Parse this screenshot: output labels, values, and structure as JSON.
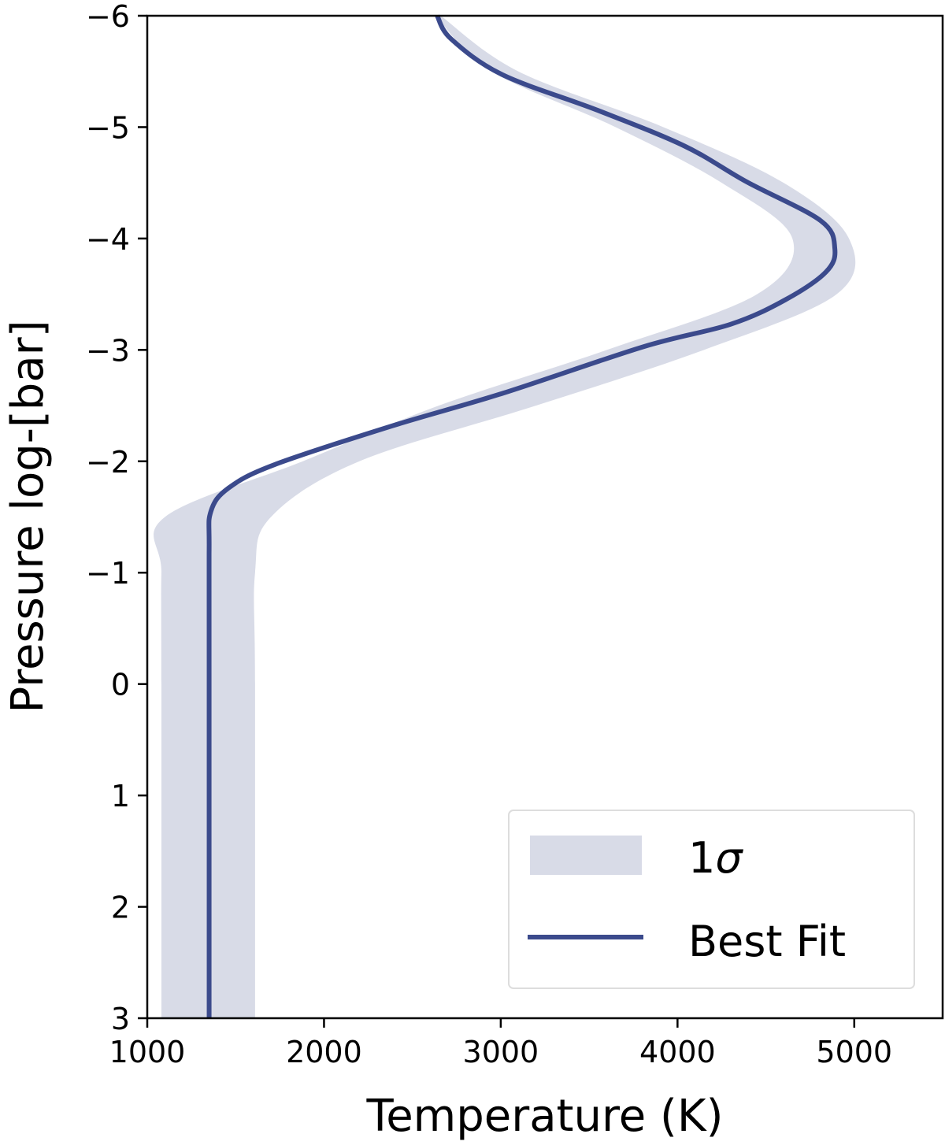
{
  "chart_data": {
    "type": "line",
    "title": "",
    "xlabel": "Temperature (K)",
    "ylabel": "Pressure log-[bar]",
    "xlim": [
      1000,
      5500
    ],
    "ylim": [
      3,
      -6
    ],
    "y_inverted": true,
    "grid": false,
    "legend_position": "lower right",
    "x_ticks": [
      1000,
      2000,
      3000,
      4000,
      5000
    ],
    "x_tick_labels": [
      "1000",
      "2000",
      "3000",
      "4000",
      "5000"
    ],
    "y_ticks": [
      -6,
      -5,
      -4,
      -3,
      -2,
      -1,
      0,
      1,
      2,
      3
    ],
    "y_tick_labels": [
      "−6",
      "−5",
      "−4",
      "−3",
      "−2",
      "−1",
      "0",
      "1",
      "2",
      "3"
    ],
    "series": [
      {
        "name": "Best Fit",
        "kind": "line",
        "color": "#3b4a8c",
        "points": [
          {
            "T": 2640,
            "logP": -6.0
          },
          {
            "T": 2720,
            "logP": -5.79
          },
          {
            "T": 3010,
            "logP": -5.47
          },
          {
            "T": 3550,
            "logP": -5.15
          },
          {
            "T": 4040,
            "logP": -4.83
          },
          {
            "T": 4390,
            "logP": -4.51
          },
          {
            "T": 4810,
            "logP": -4.16
          },
          {
            "T": 4890,
            "logP": -3.91
          },
          {
            "T": 4840,
            "logP": -3.7
          },
          {
            "T": 4610,
            "logP": -3.45
          },
          {
            "T": 4300,
            "logP": -3.23
          },
          {
            "T": 3810,
            "logP": -3.03
          },
          {
            "T": 3010,
            "logP": -2.61
          },
          {
            "T": 2390,
            "logP": -2.32
          },
          {
            "T": 1720,
            "logP": -1.97
          },
          {
            "T": 1460,
            "logP": -1.76
          },
          {
            "T": 1360,
            "logP": -1.55
          },
          {
            "T": 1350,
            "logP": -1.2
          },
          {
            "T": 1350,
            "logP": 0.0
          },
          {
            "T": 1350,
            "logP": 3.0
          }
        ]
      },
      {
        "name": "1σ",
        "kind": "band",
        "color": "#d8dbe7",
        "points": [
          {
            "logP": -6.0,
            "T_low": 2630,
            "T_high": 2660
          },
          {
            "logP": -5.5,
            "T_low": 2950,
            "T_high": 3100
          },
          {
            "logP": -5.0,
            "T_low": 3650,
            "T_high": 3920
          },
          {
            "logP": -4.5,
            "T_low": 4250,
            "T_high": 4600
          },
          {
            "logP": -4.0,
            "T_low": 4650,
            "T_high": 4970
          },
          {
            "logP": -3.5,
            "T_low": 4450,
            "T_high": 4900
          },
          {
            "logP": -3.0,
            "T_low": 3600,
            "T_high": 4150
          },
          {
            "logP": -2.5,
            "T_low": 2650,
            "T_high": 3200
          },
          {
            "logP": -2.0,
            "T_low": 1880,
            "T_high": 2200
          },
          {
            "logP": -1.5,
            "T_low": 1100,
            "T_high": 1700
          },
          {
            "logP": -1.0,
            "T_low": 1080,
            "T_high": 1610
          },
          {
            "logP": 0.0,
            "T_low": 1080,
            "T_high": 1610
          },
          {
            "logP": 3.0,
            "T_low": 1080,
            "T_high": 1610
          }
        ]
      }
    ],
    "legend": [
      {
        "label": "1σ",
        "kind": "band",
        "color": "#d8dbe7"
      },
      {
        "label": "Best Fit",
        "kind": "line",
        "color": "#3b4a8c"
      }
    ]
  },
  "labels": {
    "xlabel": "Temperature (K)",
    "ylabel": "Pressure log-[bar]",
    "legend_sigma_num": "1",
    "legend_sigma_sym": "σ",
    "legend_best_fit": "Best Fit"
  },
  "colors": {
    "line": "#3b4a8c",
    "band": "#d8dbe7",
    "axis": "#000000",
    "legend_border": "#dddddd"
  }
}
